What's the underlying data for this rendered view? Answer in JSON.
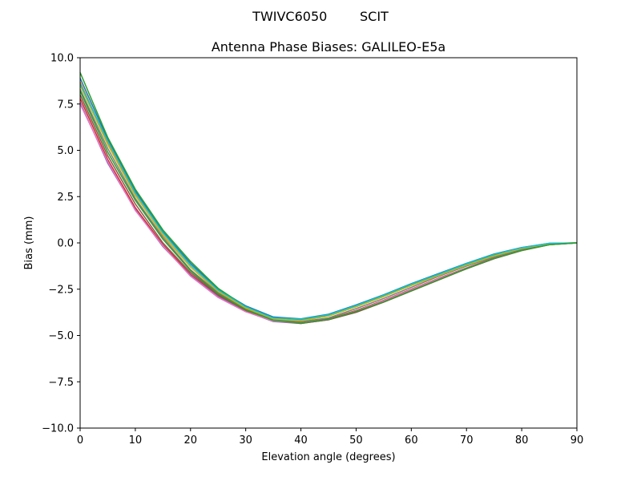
{
  "figure": {
    "suptitle": "TWIVC6050        SCIT"
  },
  "chart_data": {
    "type": "line",
    "title": "Antenna Phase Biases: GALILEO-E5a",
    "xlabel": "Elevation angle (degrees)",
    "ylabel": "Bias (mm)",
    "xlim": [
      0,
      90
    ],
    "ylim": [
      -10,
      10
    ],
    "xticks": [
      0,
      10,
      20,
      30,
      40,
      50,
      60,
      70,
      80,
      90
    ],
    "xtick_labels": [
      "0",
      "10",
      "20",
      "30",
      "40",
      "50",
      "60",
      "70",
      "80",
      "90"
    ],
    "yticks": [
      -10,
      -7.5,
      -5,
      -2.5,
      0,
      2.5,
      5,
      7.5,
      10
    ],
    "ytick_labels": [
      "−10.0",
      "−7.5",
      "−5.0",
      "−2.5",
      "0.0",
      "2.5",
      "5.0",
      "7.5",
      "10.0"
    ],
    "grid": false,
    "x": [
      0,
      5,
      10,
      15,
      20,
      25,
      30,
      35,
      40,
      45,
      50,
      55,
      60,
      65,
      70,
      75,
      80,
      85,
      90
    ],
    "series": [
      {
        "color": "#1f77b4",
        "values": [
          8.9,
          5.6,
          2.8,
          0.6,
          -1.1,
          -2.5,
          -3.4,
          -4.0,
          -4.1,
          -3.85,
          -3.35,
          -2.8,
          -2.2,
          -1.65,
          -1.1,
          -0.6,
          -0.25,
          -0.02,
          0.0
        ]
      },
      {
        "color": "#ff7f0e",
        "values": [
          8.7,
          5.4,
          2.6,
          0.4,
          -1.3,
          -2.65,
          -3.55,
          -4.1,
          -4.2,
          -3.95,
          -3.45,
          -2.9,
          -2.3,
          -1.75,
          -1.2,
          -0.7,
          -0.3,
          -0.05,
          0.0
        ]
      },
      {
        "color": "#2ca02c",
        "values": [
          9.2,
          5.7,
          2.9,
          0.7,
          -1.0,
          -2.45,
          -3.45,
          -4.05,
          -4.15,
          -3.9,
          -3.4,
          -2.85,
          -2.25,
          -1.7,
          -1.15,
          -0.65,
          -0.28,
          -0.03,
          0.0
        ]
      },
      {
        "color": "#d62728",
        "values": [
          7.8,
          4.5,
          1.9,
          -0.1,
          -1.7,
          -2.85,
          -3.65,
          -4.2,
          -4.3,
          -4.1,
          -3.65,
          -3.1,
          -2.5,
          -1.9,
          -1.35,
          -0.8,
          -0.38,
          -0.08,
          0.0
        ]
      },
      {
        "color": "#9467bd",
        "values": [
          7.6,
          4.3,
          1.8,
          -0.2,
          -1.75,
          -2.9,
          -3.7,
          -4.25,
          -4.35,
          -4.15,
          -3.7,
          -3.15,
          -2.55,
          -1.95,
          -1.4,
          -0.85,
          -0.4,
          -0.1,
          0.0
        ]
      },
      {
        "color": "#8c564b",
        "values": [
          8.0,
          4.7,
          2.1,
          0.0,
          -1.6,
          -2.8,
          -3.65,
          -4.2,
          -4.35,
          -4.15,
          -3.75,
          -3.2,
          -2.6,
          -2.0,
          -1.4,
          -0.85,
          -0.42,
          -0.1,
          0.0
        ]
      },
      {
        "color": "#e377c2",
        "values": [
          7.5,
          4.4,
          1.75,
          -0.15,
          -1.8,
          -2.95,
          -3.72,
          -4.22,
          -4.32,
          -4.12,
          -3.68,
          -3.12,
          -2.52,
          -1.92,
          -1.36,
          -0.82,
          -0.39,
          -0.09,
          0.0
        ]
      },
      {
        "color": "#7f7f7f",
        "values": [
          8.3,
          5.1,
          2.4,
          0.3,
          -1.45,
          -2.7,
          -3.6,
          -4.15,
          -4.25,
          -4.05,
          -3.55,
          -3.0,
          -2.4,
          -1.8,
          -1.25,
          -0.75,
          -0.33,
          -0.06,
          0.0
        ]
      },
      {
        "color": "#bcbd22",
        "values": [
          8.5,
          5.3,
          2.55,
          0.45,
          -1.3,
          -2.6,
          -3.5,
          -4.1,
          -4.2,
          -3.95,
          -3.45,
          -2.9,
          -2.3,
          -1.75,
          -1.2,
          -0.7,
          -0.3,
          -0.04,
          0.0
        ]
      },
      {
        "color": "#17becf",
        "values": [
          8.6,
          5.5,
          2.7,
          0.55,
          -1.2,
          -2.55,
          -3.45,
          -4.05,
          -4.12,
          -3.88,
          -3.38,
          -2.82,
          -2.22,
          -1.68,
          -1.12,
          -0.62,
          -0.26,
          -0.02,
          0.0
        ]
      },
      {
        "color": "#2ca02c",
        "values": [
          8.2,
          4.9,
          2.3,
          0.2,
          -1.5,
          -2.75,
          -3.6,
          -4.18,
          -4.33,
          -4.12,
          -3.7,
          -3.18,
          -2.58,
          -1.98,
          -1.38,
          -0.83,
          -0.4,
          -0.1,
          0.0
        ]
      }
    ]
  }
}
